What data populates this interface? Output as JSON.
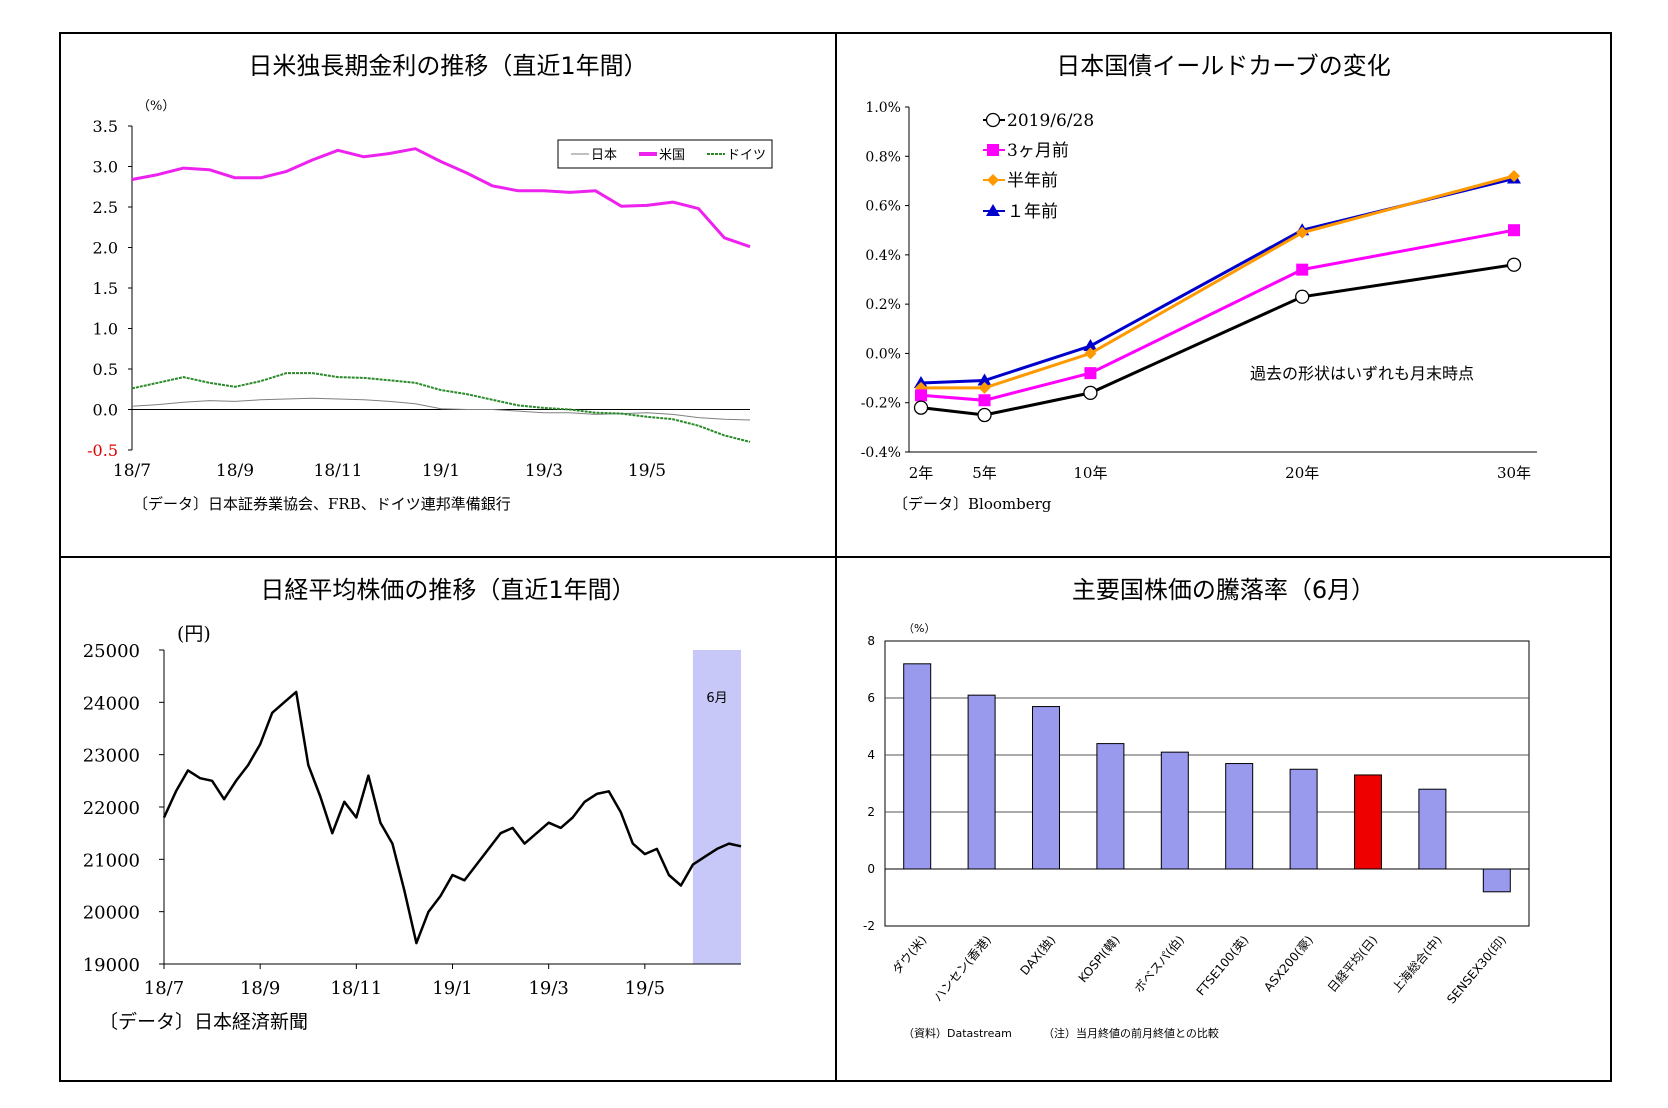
{
  "panels": {
    "p1": {
      "title": "日米独長期金利の推移（直近1年間）",
      "unit": "（%）",
      "source": "〔データ〕日本証券業協会、FRB、ドイツ連邦準備銀行",
      "colors": {
        "japan": "#808080",
        "us": "#ee22ee",
        "germany": "#2a8a2a"
      }
    },
    "p2": {
      "title": "日本国債イールドカーブの変化",
      "note": "過去の形状はいずれも月末時点",
      "source": "〔データ〕Bloomberg",
      "colors": {
        "current": "#000000",
        "m3": "#ff00ff",
        "m6": "#ff9900",
        "y1": "#0000cc"
      }
    },
    "p3": {
      "title": "日経平均株価の推移（直近1年間）",
      "unit": "(円)",
      "highlight_label": "6月",
      "source": "〔データ〕日本経済新聞",
      "colors": {
        "line": "#000000",
        "highlight": "#c8c8f8"
      }
    },
    "p4": {
      "title": "主要国株価の騰落率（6月）",
      "unit": "（%）",
      "footnote1": "（資料）Datastream",
      "footnote2": "（注）当月終値の前月終値との比較",
      "colors": {
        "bar": "#9999ee",
        "highlight": "#ee0000"
      }
    }
  },
  "chart_data": [
    {
      "type": "line",
      "title": "日米独長期金利の推移（直近1年間）",
      "ylabel": "（%）",
      "ylim": [
        -0.5,
        3.5
      ],
      "yticks": [
        "3.5",
        "3.0",
        "2.5",
        "2.0",
        "1.5",
        "1.0",
        "0.5",
        "0.0",
        "-0.5"
      ],
      "xticks": [
        "18/7",
        "18/9",
        "18/11",
        "19/1",
        "19/3",
        "19/5"
      ],
      "legend_position": "top-right",
      "x": [
        0,
        0.5,
        1,
        1.5,
        2,
        2.5,
        3,
        3.5,
        4,
        4.5,
        5,
        5.5,
        6,
        6.5,
        7,
        7.5,
        8,
        8.5,
        9,
        9.5,
        10,
        10.5,
        11,
        11.5,
        12
      ],
      "series": [
        {
          "name": "日本",
          "values": [
            0.04,
            0.06,
            0.09,
            0.11,
            0.1,
            0.12,
            0.13,
            0.14,
            0.13,
            0.12,
            0.1,
            0.07,
            0.01,
            0.0,
            0.0,
            -0.02,
            -0.04,
            -0.04,
            -0.06,
            -0.05,
            -0.04,
            -0.06,
            -0.1,
            -0.12,
            -0.13
          ]
        },
        {
          "name": "米国",
          "values": [
            2.84,
            2.9,
            2.98,
            2.96,
            2.86,
            2.86,
            2.94,
            3.08,
            3.2,
            3.12,
            3.16,
            3.22,
            3.06,
            2.92,
            2.76,
            2.7,
            2.7,
            2.68,
            2.7,
            2.51,
            2.52,
            2.56,
            2.48,
            2.12,
            2.01
          ]
        },
        {
          "name": "ドイツ",
          "values": [
            0.26,
            0.33,
            0.4,
            0.33,
            0.28,
            0.35,
            0.45,
            0.45,
            0.4,
            0.39,
            0.36,
            0.33,
            0.24,
            0.19,
            0.12,
            0.05,
            0.02,
            0.0,
            -0.04,
            -0.05,
            -0.09,
            -0.12,
            -0.2,
            -0.32,
            -0.4
          ]
        }
      ]
    },
    {
      "type": "line",
      "title": "日本国債イールドカーブの変化",
      "ylim": [
        -0.4,
        1.0
      ],
      "yticks": [
        "1.0%",
        "0.8%",
        "0.6%",
        "0.4%",
        "0.2%",
        "0.0%",
        "-0.2%",
        "-0.4%"
      ],
      "categories": [
        "2年",
        "5年",
        "10年",
        "20年",
        "30年"
      ],
      "x": [
        2,
        5,
        10,
        20,
        30
      ],
      "legend_position": "top-left",
      "series": [
        {
          "name": "2019/6/28",
          "values": [
            -0.22,
            -0.25,
            -0.16,
            0.23,
            0.36
          ]
        },
        {
          "name": "3ヶ月前",
          "values": [
            -0.17,
            -0.19,
            -0.08,
            0.34,
            0.5
          ]
        },
        {
          "name": "半年前",
          "values": [
            -0.14,
            -0.14,
            0.0,
            0.49,
            0.72
          ]
        },
        {
          "name": "１年前",
          "values": [
            -0.12,
            -0.11,
            0.03,
            0.5,
            0.71
          ]
        }
      ]
    },
    {
      "type": "line",
      "title": "日経平均株価の推移（直近1年間）",
      "ylabel": "(円)",
      "ylim": [
        19000,
        25000
      ],
      "yticks": [
        "25000",
        "24000",
        "23000",
        "22000",
        "21000",
        "20000",
        "19000"
      ],
      "xticks": [
        "18/7",
        "18/9",
        "18/11",
        "19/1",
        "19/3",
        "19/5"
      ],
      "x": [
        0,
        0.25,
        0.5,
        0.75,
        1,
        1.25,
        1.5,
        1.75,
        2,
        2.25,
        2.5,
        2.75,
        3,
        3.25,
        3.5,
        3.75,
        4,
        4.25,
        4.5,
        4.75,
        5,
        5.25,
        5.5,
        5.75,
        6,
        6.25,
        6.5,
        6.75,
        7,
        7.25,
        7.5,
        7.75,
        8,
        8.25,
        8.5,
        8.75,
        9,
        9.25,
        9.5,
        9.75,
        10,
        10.25,
        10.5,
        10.75,
        11,
        11.25,
        11.5,
        11.75,
        12
      ],
      "series": [
        {
          "name": "日経平均",
          "values": [
            21800,
            22300,
            22700,
            22550,
            22500,
            22150,
            22500,
            22800,
            23200,
            23800,
            24000,
            24200,
            22800,
            22200,
            21500,
            22100,
            21800,
            22600,
            21700,
            21300,
            20400,
            19400,
            20000,
            20300,
            20700,
            20600,
            20900,
            21200,
            21500,
            21600,
            21300,
            21500,
            21700,
            21600,
            21800,
            22100,
            22250,
            22300,
            21900,
            21300,
            21100,
            21200,
            20700,
            20500,
            20900,
            21050,
            21200,
            21300,
            21250
          ]
        }
      ],
      "highlight_region": {
        "label": "6月",
        "x_start": 11.0,
        "x_end": 12.0
      }
    },
    {
      "type": "bar",
      "title": "主要国株価の騰落率（6月）",
      "ylabel": "（%）",
      "ylim": [
        -2,
        8
      ],
      "yticks": [
        "8",
        "6",
        "4",
        "2",
        "0",
        "-2"
      ],
      "categories": [
        "ダウ(米)",
        "ハンセン(香港)",
        "DAX(独)",
        "KOSPI(韓)",
        "ボベスパ(伯)",
        "FTSE100(英)",
        "ASX200(豪)",
        "日経平均(日)",
        "上海総合(中)",
        "SENSEX30(印)"
      ],
      "values": [
        7.2,
        6.1,
        5.7,
        4.4,
        4.1,
        3.7,
        3.5,
        3.3,
        2.8,
        -0.8
      ],
      "highlight_category": "日経平均(日)"
    }
  ]
}
